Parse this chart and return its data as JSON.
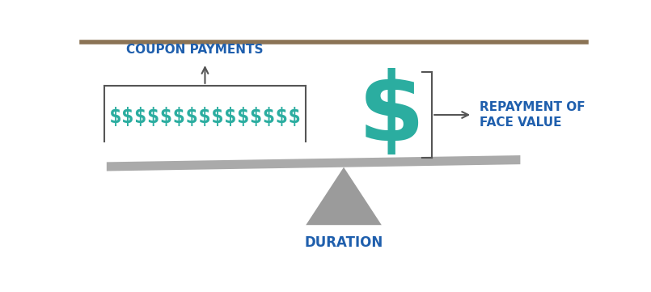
{
  "background_color": "#ffffff",
  "top_border_color": "#8B7355",
  "teal_color": "#2BADA0",
  "blue_color": "#1F5FAD",
  "dark_gray": "#555555",
  "triangle_color": "#9B9B9B",
  "beam_color": "#AAAAAA",
  "coupon_label": "COUPON PAYMENTS",
  "repayment_label": "REPAYMENT OF\nFACE VALUE",
  "duration_label": "DURATION",
  "dollar_small": "$$$$$$$$$$$$$$$",
  "dollar_large": "$"
}
